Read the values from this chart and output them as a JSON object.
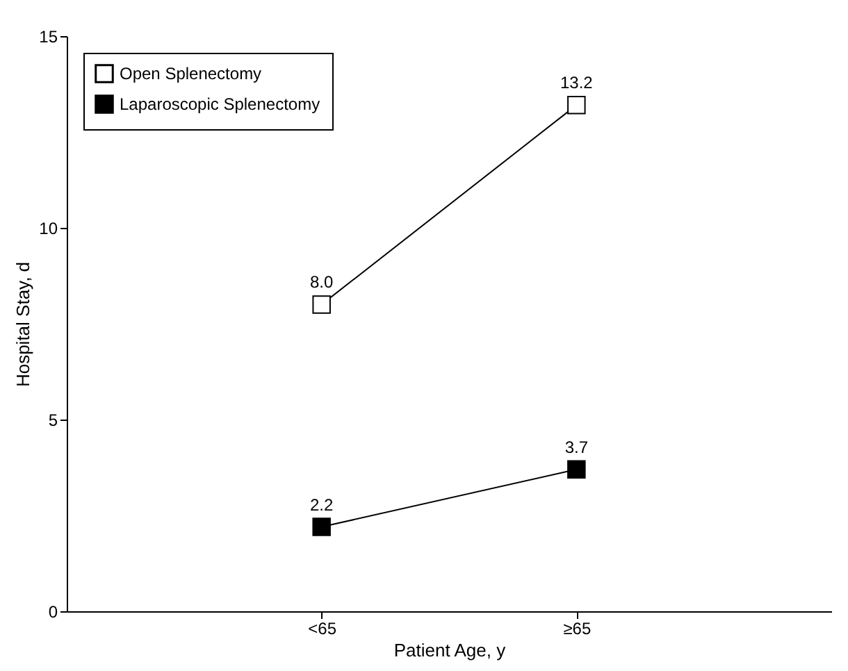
{
  "chart_data": {
    "type": "line",
    "xlabel": "Patient Age, y",
    "ylabel": "Hospital Stay, d",
    "categories": [
      "<65",
      "≥65"
    ],
    "series": [
      {
        "name": "Open Splenectomy",
        "color": "#ffffff",
        "values": [
          8.0,
          13.2
        ],
        "value_labels": [
          "8.0",
          "13.2"
        ]
      },
      {
        "name": "Laparoscopic Splenectomy",
        "color": "#000000",
        "values": [
          2.2,
          3.7
        ],
        "value_labels": [
          "2.2",
          "3.7"
        ]
      }
    ],
    "ylim": [
      0,
      15
    ],
    "yticks": [
      0,
      5,
      10,
      15
    ],
    "marker": "square",
    "line_style": "solid",
    "legend": "top left",
    "grid": false
  }
}
